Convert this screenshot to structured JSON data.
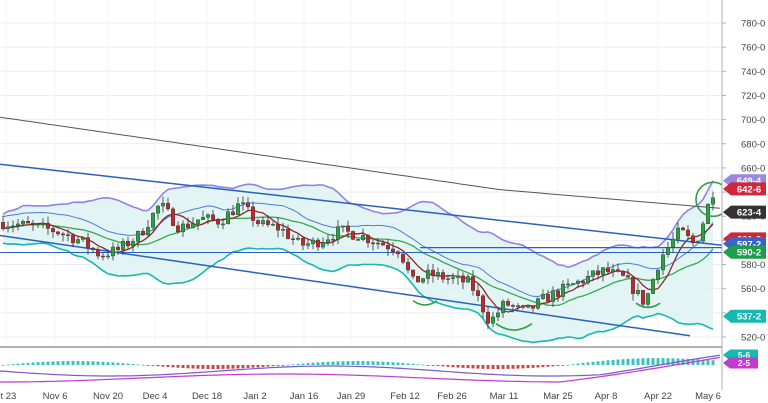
{
  "chart_data": {
    "type": "candlestick",
    "y_axis": {
      "ticks": [
        "780-0",
        "760-0",
        "740-0",
        "720-0",
        "700-0",
        "680-0",
        "660-0",
        "640-0",
        "620-0",
        "600-0",
        "580-0",
        "560-0",
        "540-0",
        "520-0"
      ],
      "tick_values": [
        780,
        760,
        740,
        720,
        700,
        680,
        660,
        640,
        620,
        600,
        580,
        560,
        540,
        520
      ],
      "range": [
        510,
        790
      ]
    },
    "x_axis": {
      "labels": [
        "ct 23",
        "Nov 6",
        "Nov 20",
        "Dec 4",
        "Dec 18",
        "Jan 2",
        "Jan 16",
        "Jan 29",
        "Feb 12",
        "Feb 26",
        "Mar 11",
        "Mar 25",
        "Apr 8",
        "Apr 22",
        "May 6"
      ]
    },
    "price_labels": [
      {
        "text": "649-4",
        "value": 649.4,
        "color": "#9b87e0"
      },
      {
        "text": "642-6",
        "value": 642.6,
        "color": "#d0283b"
      },
      {
        "text": "623-4",
        "value": 623.4,
        "color": "#333333"
      },
      {
        "text": "601-2",
        "value": 601.2,
        "color": "#d0283b"
      },
      {
        "text": "597-2",
        "value": 597.2,
        "color": "#3a63c8"
      },
      {
        "text": "590-2",
        "value": 590.2,
        "color": "#1e9e4a"
      },
      {
        "text": "537-2",
        "value": 537.2,
        "color": "#17b8b0"
      }
    ],
    "indicator_labels": [
      {
        "text": "5-6",
        "color": "#17b8b0"
      },
      {
        "text": "2-5",
        "color": "#c23ad0"
      }
    ],
    "colors": {
      "up": "#2ea043",
      "down": "#c0282d",
      "bollinger": "#17b8b0",
      "bollinger_upper": "#8f83e3",
      "channel": "#2a5fbf",
      "ma_long": "#555555",
      "ma_mid": "#36a852",
      "ma_short": "#8a2a2a",
      "horizontal_support": "#2a5fbf",
      "annotation": "#2ea043"
    }
  }
}
